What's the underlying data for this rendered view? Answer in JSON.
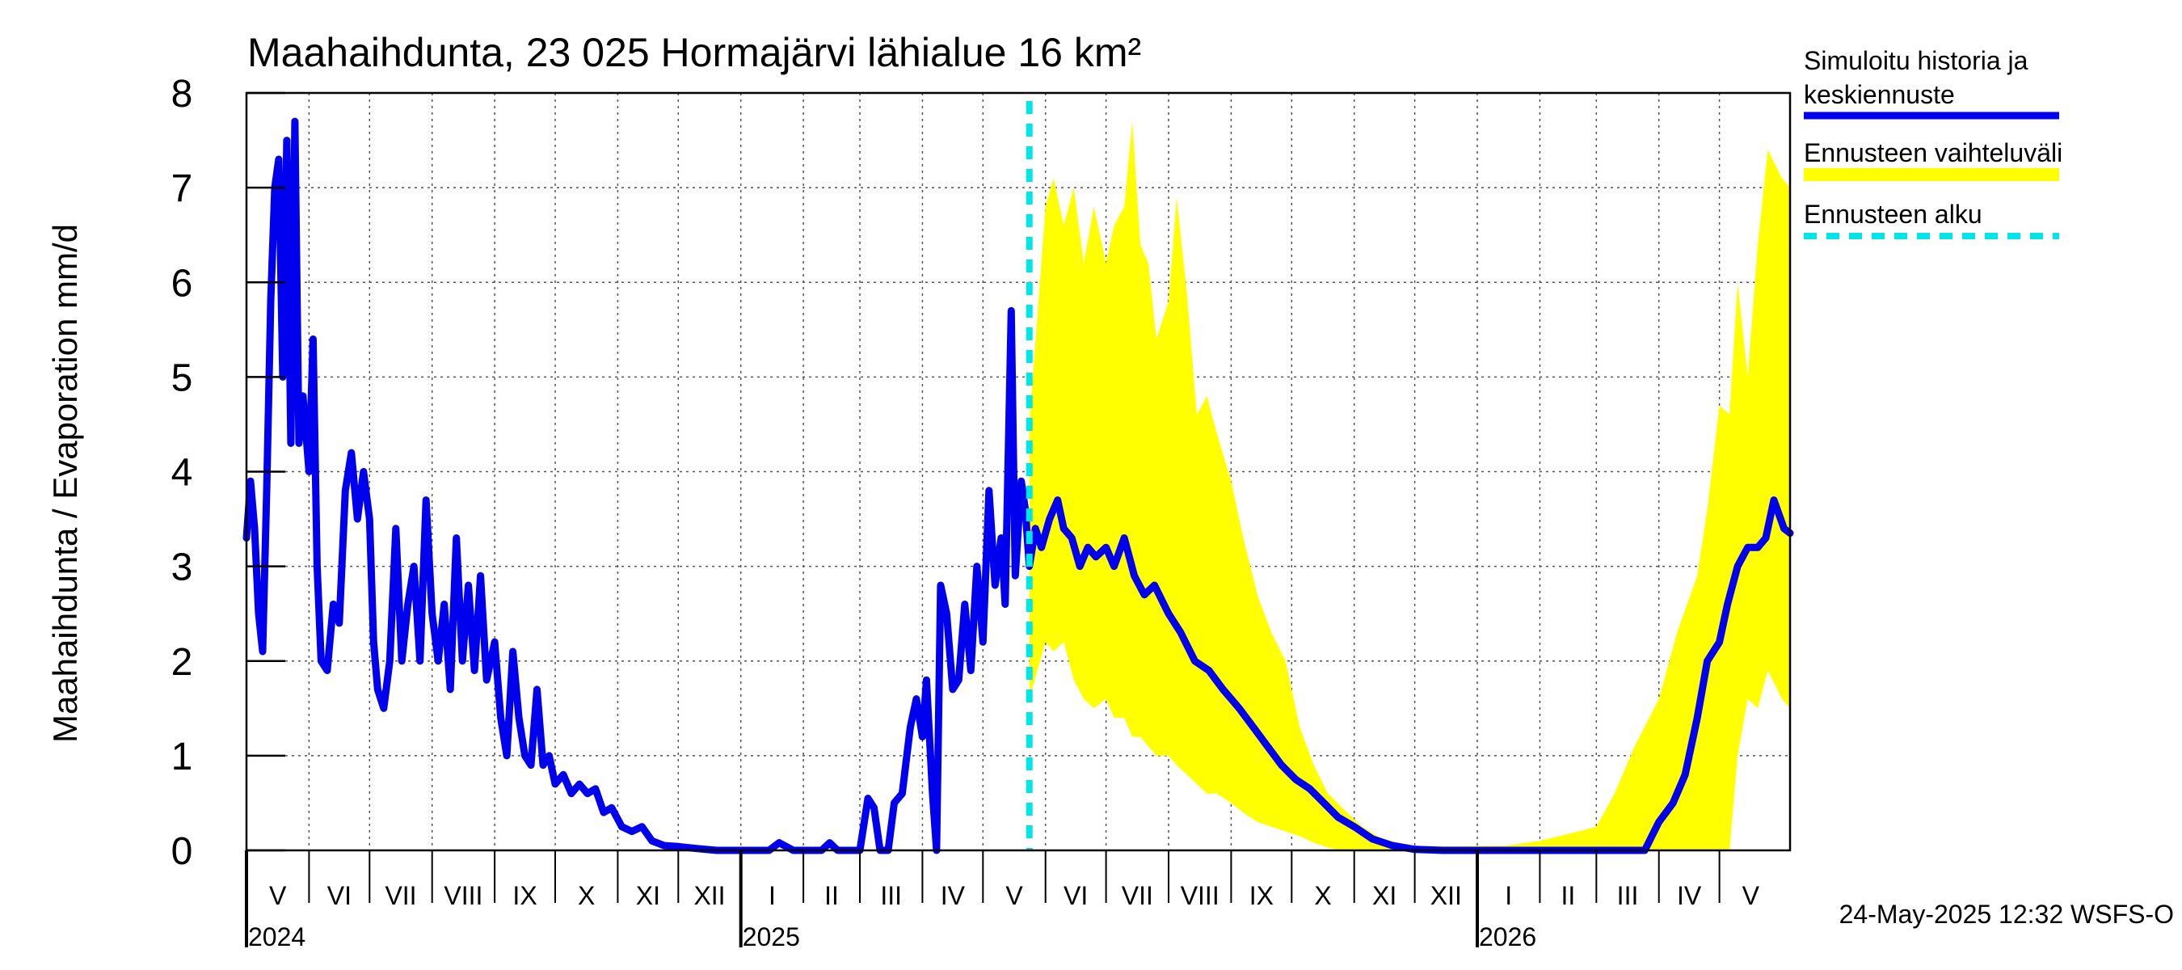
{
  "chart_data": {
    "type": "line",
    "title": "Maahaihdunta, 23 025 Hormajärvi lähialue 16 km²",
    "ylabel": "Maahaihdunta / Evaporation   mm/d",
    "ylim": [
      0,
      8
    ],
    "yticks": [
      0,
      1,
      2,
      3,
      4,
      5,
      6,
      7,
      8
    ],
    "xlim": [
      "2024-05-01",
      "2026-06-05"
    ],
    "grid": true,
    "legend_position": "right",
    "month_labels": [
      {
        "label": "V",
        "start": "2024-05-01",
        "end": "2024-06-01"
      },
      {
        "label": "VI",
        "start": "2024-06-01",
        "end": "2024-07-01"
      },
      {
        "label": "VII",
        "start": "2024-07-01",
        "end": "2024-08-01"
      },
      {
        "label": "VIII",
        "start": "2024-08-01",
        "end": "2024-09-01"
      },
      {
        "label": "IX",
        "start": "2024-09-01",
        "end": "2024-10-01"
      },
      {
        "label": "X",
        "start": "2024-10-01",
        "end": "2024-11-01"
      },
      {
        "label": "XI",
        "start": "2024-11-01",
        "end": "2024-12-01"
      },
      {
        "label": "XII",
        "start": "2024-12-01",
        "end": "2025-01-01"
      },
      {
        "label": "I",
        "start": "2025-01-01",
        "end": "2025-02-01"
      },
      {
        "label": "II",
        "start": "2025-02-01",
        "end": "2025-03-01"
      },
      {
        "label": "III",
        "start": "2025-03-01",
        "end": "2025-04-01"
      },
      {
        "label": "IV",
        "start": "2025-04-01",
        "end": "2025-05-01"
      },
      {
        "label": "V",
        "start": "2025-05-01",
        "end": "2025-06-01"
      },
      {
        "label": "VI",
        "start": "2025-06-01",
        "end": "2025-07-01"
      },
      {
        "label": "VII",
        "start": "2025-07-01",
        "end": "2025-08-01"
      },
      {
        "label": "VIII",
        "start": "2025-08-01",
        "end": "2025-09-01"
      },
      {
        "label": "IX",
        "start": "2025-09-01",
        "end": "2025-10-01"
      },
      {
        "label": "X",
        "start": "2025-10-01",
        "end": "2025-11-01"
      },
      {
        "label": "XI",
        "start": "2025-11-01",
        "end": "2025-12-01"
      },
      {
        "label": "XII",
        "start": "2025-12-01",
        "end": "2026-01-01"
      },
      {
        "label": "I",
        "start": "2026-01-01",
        "end": "2026-02-01"
      },
      {
        "label": "II",
        "start": "2026-02-01",
        "end": "2026-03-01"
      },
      {
        "label": "III",
        "start": "2026-03-01",
        "end": "2026-04-01"
      },
      {
        "label": "IV",
        "start": "2026-04-01",
        "end": "2026-05-01"
      },
      {
        "label": "V",
        "start": "2026-05-01",
        "end": "2026-06-01"
      }
    ],
    "year_labels": [
      {
        "label": "2024",
        "date": "2024-05-01"
      },
      {
        "label": "2025",
        "date": "2025-01-01"
      },
      {
        "label": "2026",
        "date": "2026-01-01"
      }
    ],
    "forecast_start": "2025-05-24",
    "series": [
      {
        "name": "Simuloitu historia ja keskiennuste",
        "color": "#0000ee",
        "points": [
          [
            "2024-05-01",
            3.3
          ],
          [
            "2024-05-03",
            3.9
          ],
          [
            "2024-05-05",
            3.4
          ],
          [
            "2024-05-07",
            2.5
          ],
          [
            "2024-05-09",
            2.1
          ],
          [
            "2024-05-11",
            3.8
          ],
          [
            "2024-05-13",
            5.8
          ],
          [
            "2024-05-15",
            7.0
          ],
          [
            "2024-05-17",
            7.3
          ],
          [
            "2024-05-19",
            5.0
          ],
          [
            "2024-05-21",
            7.5
          ],
          [
            "2024-05-23",
            4.3
          ],
          [
            "2024-05-25",
            7.7
          ],
          [
            "2024-05-27",
            4.3
          ],
          [
            "2024-05-29",
            4.8
          ],
          [
            "2024-06-01",
            4.0
          ],
          [
            "2024-06-03",
            5.4
          ],
          [
            "2024-06-05",
            3.0
          ],
          [
            "2024-06-07",
            2.0
          ],
          [
            "2024-06-10",
            1.9
          ],
          [
            "2024-06-13",
            2.6
          ],
          [
            "2024-06-16",
            2.4
          ],
          [
            "2024-06-19",
            3.8
          ],
          [
            "2024-06-22",
            4.2
          ],
          [
            "2024-06-25",
            3.5
          ],
          [
            "2024-06-28",
            4.0
          ],
          [
            "2024-07-01",
            3.5
          ],
          [
            "2024-07-03",
            2.2
          ],
          [
            "2024-07-05",
            1.7
          ],
          [
            "2024-07-08",
            1.5
          ],
          [
            "2024-07-11",
            2.0
          ],
          [
            "2024-07-14",
            3.4
          ],
          [
            "2024-07-17",
            2.0
          ],
          [
            "2024-07-20",
            2.6
          ],
          [
            "2024-07-23",
            3.0
          ],
          [
            "2024-07-26",
            2.0
          ],
          [
            "2024-07-29",
            3.7
          ],
          [
            "2024-08-01",
            2.5
          ],
          [
            "2024-08-04",
            2.0
          ],
          [
            "2024-08-07",
            2.6
          ],
          [
            "2024-08-10",
            1.7
          ],
          [
            "2024-08-13",
            3.3
          ],
          [
            "2024-08-16",
            2.0
          ],
          [
            "2024-08-19",
            2.8
          ],
          [
            "2024-08-22",
            1.9
          ],
          [
            "2024-08-25",
            2.9
          ],
          [
            "2024-08-28",
            1.8
          ],
          [
            "2024-09-01",
            2.2
          ],
          [
            "2024-09-04",
            1.4
          ],
          [
            "2024-09-07",
            1.0
          ],
          [
            "2024-09-10",
            2.1
          ],
          [
            "2024-09-13",
            1.4
          ],
          [
            "2024-09-16",
            1.0
          ],
          [
            "2024-09-19",
            0.9
          ],
          [
            "2024-09-22",
            1.7
          ],
          [
            "2024-09-25",
            0.9
          ],
          [
            "2024-09-28",
            1.0
          ],
          [
            "2024-10-01",
            0.7
          ],
          [
            "2024-10-05",
            0.8
          ],
          [
            "2024-10-09",
            0.6
          ],
          [
            "2024-10-13",
            0.7
          ],
          [
            "2024-10-17",
            0.6
          ],
          [
            "2024-10-21",
            0.65
          ],
          [
            "2024-10-25",
            0.4
          ],
          [
            "2024-10-29",
            0.45
          ],
          [
            "2024-11-03",
            0.25
          ],
          [
            "2024-11-08",
            0.2
          ],
          [
            "2024-11-13",
            0.25
          ],
          [
            "2024-11-18",
            0.1
          ],
          [
            "2024-11-24",
            0.05
          ],
          [
            "2024-12-01",
            0.04
          ],
          [
            "2024-12-10",
            0.02
          ],
          [
            "2024-12-20",
            0.0
          ],
          [
            "2025-01-01",
            0.0
          ],
          [
            "2025-01-15",
            0.0
          ],
          [
            "2025-01-20",
            0.08
          ],
          [
            "2025-01-27",
            0.0
          ],
          [
            "2025-02-10",
            0.0
          ],
          [
            "2025-02-14",
            0.08
          ],
          [
            "2025-02-18",
            0.0
          ],
          [
            "2025-03-01",
            0.0
          ],
          [
            "2025-03-05",
            0.55
          ],
          [
            "2025-03-08",
            0.45
          ],
          [
            "2025-03-11",
            0.0
          ],
          [
            "2025-03-15",
            0.0
          ],
          [
            "2025-03-18",
            0.5
          ],
          [
            "2025-03-22",
            0.6
          ],
          [
            "2025-03-26",
            1.3
          ],
          [
            "2025-03-29",
            1.6
          ],
          [
            "2025-04-01",
            1.2
          ],
          [
            "2025-04-03",
            1.8
          ],
          [
            "2025-04-06",
            0.6
          ],
          [
            "2025-04-08",
            0.0
          ],
          [
            "2025-04-10",
            2.8
          ],
          [
            "2025-04-13",
            2.5
          ],
          [
            "2025-04-16",
            1.7
          ],
          [
            "2025-04-19",
            1.8
          ],
          [
            "2025-04-22",
            2.6
          ],
          [
            "2025-04-25",
            1.9
          ],
          [
            "2025-04-28",
            3.0
          ],
          [
            "2025-05-01",
            2.2
          ],
          [
            "2025-05-04",
            3.8
          ],
          [
            "2025-05-07",
            2.8
          ],
          [
            "2025-05-10",
            3.3
          ],
          [
            "2025-05-12",
            2.6
          ],
          [
            "2025-05-15",
            5.7
          ],
          [
            "2025-05-17",
            2.9
          ],
          [
            "2025-05-20",
            3.9
          ],
          [
            "2025-05-22",
            3.6
          ],
          [
            "2025-05-24",
            3.0
          ],
          [
            "2025-05-27",
            3.4
          ],
          [
            "2025-05-30",
            3.2
          ],
          [
            "2025-06-03",
            3.5
          ],
          [
            "2025-06-07",
            3.7
          ],
          [
            "2025-06-10",
            3.4
          ],
          [
            "2025-06-14",
            3.3
          ],
          [
            "2025-06-18",
            3.0
          ],
          [
            "2025-06-22",
            3.2
          ],
          [
            "2025-06-26",
            3.1
          ],
          [
            "2025-07-01",
            3.2
          ],
          [
            "2025-07-05",
            3.0
          ],
          [
            "2025-07-10",
            3.3
          ],
          [
            "2025-07-15",
            2.9
          ],
          [
            "2025-07-20",
            2.7
          ],
          [
            "2025-07-25",
            2.8
          ],
          [
            "2025-08-01",
            2.5
          ],
          [
            "2025-08-07",
            2.3
          ],
          [
            "2025-08-14",
            2.0
          ],
          [
            "2025-08-21",
            1.9
          ],
          [
            "2025-08-28",
            1.7
          ],
          [
            "2025-09-05",
            1.5
          ],
          [
            "2025-09-12",
            1.3
          ],
          [
            "2025-09-19",
            1.1
          ],
          [
            "2025-09-26",
            0.9
          ],
          [
            "2025-10-03",
            0.75
          ],
          [
            "2025-10-10",
            0.65
          ],
          [
            "2025-10-17",
            0.5
          ],
          [
            "2025-10-24",
            0.35
          ],
          [
            "2025-11-01",
            0.25
          ],
          [
            "2025-11-10",
            0.12
          ],
          [
            "2025-11-20",
            0.05
          ],
          [
            "2025-12-01",
            0.01
          ],
          [
            "2025-12-15",
            0.0
          ],
          [
            "2026-01-15",
            0.0
          ],
          [
            "2026-02-15",
            0.0
          ],
          [
            "2026-03-15",
            0.0
          ],
          [
            "2026-03-25",
            0.0
          ],
          [
            "2026-04-01",
            0.3
          ],
          [
            "2026-04-08",
            0.5
          ],
          [
            "2026-04-14",
            0.8
          ],
          [
            "2026-04-20",
            1.4
          ],
          [
            "2026-04-25",
            2.0
          ],
          [
            "2026-05-01",
            2.2
          ],
          [
            "2026-05-05",
            2.6
          ],
          [
            "2026-05-10",
            3.0
          ],
          [
            "2026-05-15",
            3.2
          ],
          [
            "2026-05-20",
            3.2
          ],
          [
            "2026-05-24",
            3.3
          ],
          [
            "2026-05-28",
            3.7
          ],
          [
            "2026-06-02",
            3.4
          ],
          [
            "2026-06-05",
            3.35
          ]
        ]
      },
      {
        "name": "Ennusteen vaihteluväli",
        "color": "#ffff00",
        "range": [
          [
            "2025-05-24",
            1.6,
            4.5
          ],
          [
            "2025-06-01",
            2.2,
            6.8
          ],
          [
            "2025-06-05",
            2.1,
            7.1
          ],
          [
            "2025-06-10",
            2.2,
            6.6
          ],
          [
            "2025-06-15",
            1.8,
            7.0
          ],
          [
            "2025-06-20",
            1.6,
            6.2
          ],
          [
            "2025-06-25",
            1.5,
            6.8
          ],
          [
            "2025-07-01",
            1.6,
            6.2
          ],
          [
            "2025-07-05",
            1.4,
            6.6
          ],
          [
            "2025-07-10",
            1.4,
            6.8
          ],
          [
            "2025-07-14",
            1.2,
            7.7
          ],
          [
            "2025-07-18",
            1.2,
            6.4
          ],
          [
            "2025-07-22",
            1.1,
            6.2
          ],
          [
            "2025-07-26",
            1.0,
            5.4
          ],
          [
            "2025-08-01",
            1.0,
            5.8
          ],
          [
            "2025-08-05",
            0.9,
            6.9
          ],
          [
            "2025-08-10",
            0.8,
            5.9
          ],
          [
            "2025-08-15",
            0.7,
            4.6
          ],
          [
            "2025-08-20",
            0.6,
            4.8
          ],
          [
            "2025-08-25",
            0.6,
            4.4
          ],
          [
            "2025-09-01",
            0.5,
            3.9
          ],
          [
            "2025-09-07",
            0.4,
            3.3
          ],
          [
            "2025-09-14",
            0.3,
            2.7
          ],
          [
            "2025-09-21",
            0.25,
            2.3
          ],
          [
            "2025-09-28",
            0.2,
            2.0
          ],
          [
            "2025-10-05",
            0.15,
            1.3
          ],
          [
            "2025-10-12",
            0.08,
            0.9
          ],
          [
            "2025-10-19",
            0.03,
            0.6
          ],
          [
            "2025-10-26",
            0.0,
            0.45
          ],
          [
            "2025-11-05",
            0.0,
            0.25
          ],
          [
            "2025-11-15",
            0.0,
            0.12
          ],
          [
            "2025-12-01",
            0.0,
            0.04
          ],
          [
            "2026-01-15",
            0.0,
            0.05
          ],
          [
            "2026-02-01",
            0.0,
            0.1
          ],
          [
            "2026-02-20",
            0.0,
            0.2
          ],
          [
            "2026-03-01",
            0.0,
            0.25
          ],
          [
            "2026-03-10",
            0.0,
            0.6
          ],
          [
            "2026-03-20",
            0.0,
            1.1
          ],
          [
            "2026-04-01",
            0.0,
            1.6
          ],
          [
            "2026-04-10",
            0.0,
            2.3
          ],
          [
            "2026-04-20",
            0.0,
            2.9
          ],
          [
            "2026-04-25",
            0.0,
            3.6
          ],
          [
            "2026-05-01",
            0.0,
            4.7
          ],
          [
            "2026-05-06",
            0.0,
            4.6
          ],
          [
            "2026-05-10",
            1.0,
            6.0
          ],
          [
            "2026-05-15",
            1.6,
            5.0
          ],
          [
            "2026-05-20",
            1.5,
            6.4
          ],
          [
            "2026-05-25",
            1.9,
            7.4
          ],
          [
            "2026-06-01",
            1.6,
            7.1
          ],
          [
            "2026-06-05",
            1.5,
            7.0
          ]
        ]
      },
      {
        "name": "Ennusteen alku",
        "color": "#00e5e5"
      }
    ],
    "footer": "24-May-2025 12:32 WSFS-O"
  }
}
